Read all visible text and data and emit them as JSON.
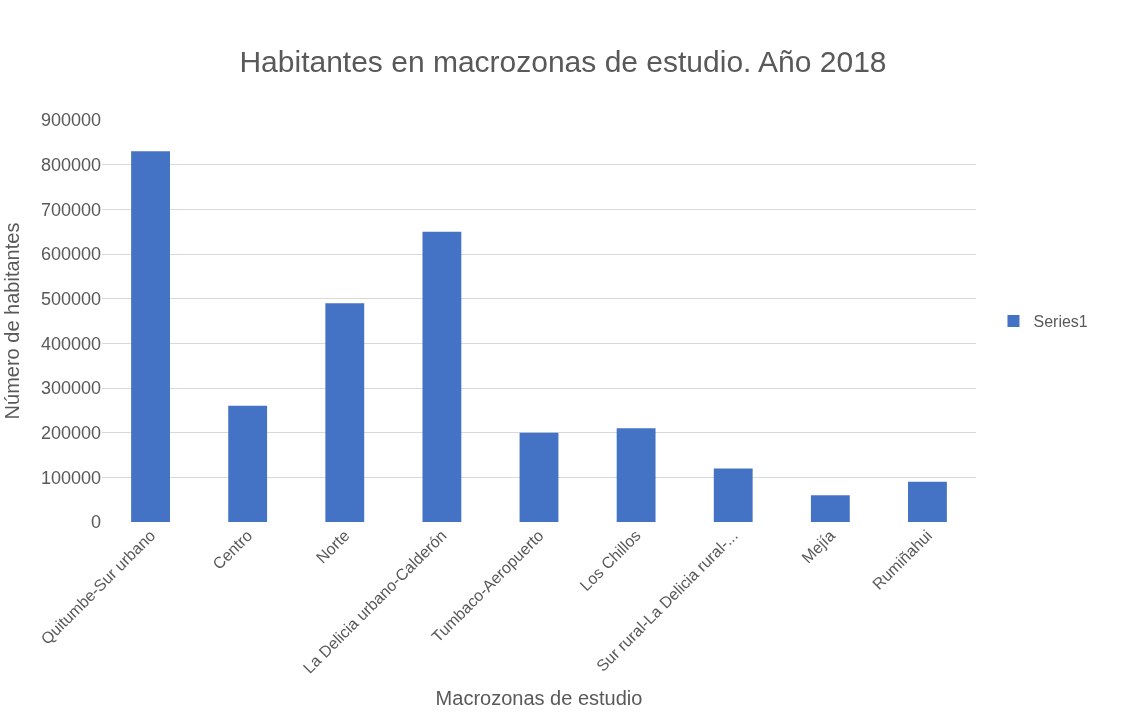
{
  "chart_data": {
    "type": "bar",
    "title": "Habitantes en macrozonas de estudio. Año 2018",
    "xlabel": "Macrozonas de estudio",
    "ylabel": "Número de habitantes",
    "categories": [
      "Quitumbe-Sur urbano",
      "Centro",
      "Norte",
      "La Delicia urbano-Calderón",
      "Tumbaco-Aeropuerto",
      "Los Chillos",
      "Sur rural-La Delicia rural-...",
      "Mejía",
      "Rumiñahui"
    ],
    "series": [
      {
        "name": "Series1",
        "color": "#4472c4",
        "values": [
          830000,
          260000,
          490000,
          650000,
          200000,
          210000,
          120000,
          60000,
          90000
        ]
      }
    ],
    "ylim": [
      0,
      900000
    ],
    "yticks": [
      0,
      100000,
      200000,
      300000,
      400000,
      500000,
      600000,
      700000,
      800000,
      900000
    ],
    "grid": "y",
    "legend": "right"
  }
}
